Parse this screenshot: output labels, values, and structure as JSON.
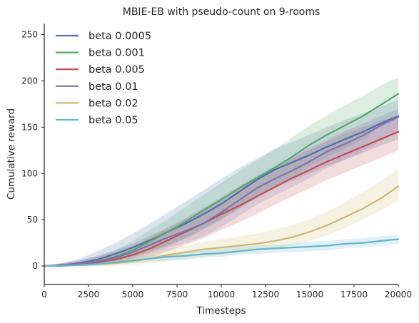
{
  "chart_data": {
    "type": "line",
    "title": "MBIE-EB with pseudo-count on 9-rooms",
    "xlabel": "Timesteps",
    "ylabel": "Cumulative reward",
    "xlim": [
      0,
      20000
    ],
    "ylim": [
      -20,
      262
    ],
    "xticks": [
      0,
      2500,
      5000,
      7500,
      10000,
      12500,
      15000,
      17500,
      20000
    ],
    "yticks": [
      0,
      50,
      100,
      150,
      200,
      250
    ],
    "grid": false,
    "legend_position": "top-left",
    "x": [
      0,
      1000,
      2000,
      3000,
      4000,
      5000,
      6000,
      7000,
      8000,
      9000,
      10000,
      11000,
      12000,
      13000,
      14000,
      15000,
      16000,
      17000,
      18000,
      19000,
      20000
    ],
    "series": [
      {
        "name": "beta 0.0005",
        "color": "#4c72b0",
        "values": [
          0,
          1,
          3,
          7,
          13,
          20,
          28,
          37,
          46,
          56,
          67,
          80,
          93,
          104,
          112,
          120,
          129,
          137,
          145,
          154,
          162
        ],
        "lower": [
          0,
          0,
          1,
          3,
          6,
          10,
          16,
          22,
          30,
          40,
          50,
          62,
          74,
          85,
          92,
          100,
          108,
          115,
          122,
          130,
          137
        ],
        "upper": [
          0,
          3,
          8,
          16,
          25,
          35,
          46,
          58,
          70,
          82,
          94,
          106,
          116,
          126,
          134,
          142,
          150,
          158,
          165,
          172,
          180
        ]
      },
      {
        "name": "beta 0.001",
        "color": "#55a868",
        "values": [
          0,
          1,
          2,
          5,
          10,
          17,
          27,
          37,
          48,
          60,
          72,
          84,
          95,
          106,
          118,
          131,
          142,
          152,
          162,
          174,
          186
        ],
        "lower": [
          0,
          0,
          0,
          2,
          5,
          9,
          15,
          22,
          30,
          40,
          50,
          62,
          73,
          84,
          96,
          108,
          118,
          127,
          137,
          150,
          162
        ],
        "upper": [
          0,
          2,
          5,
          10,
          17,
          27,
          39,
          51,
          64,
          77,
          90,
          102,
          114,
          126,
          139,
          152,
          163,
          174,
          184,
          195,
          204
        ]
      },
      {
        "name": "beta 0.005",
        "color": "#c44e52",
        "values": [
          0,
          1,
          2,
          4,
          7,
          12,
          19,
          28,
          37,
          46,
          56,
          65,
          75,
          85,
          95,
          104,
          113,
          121,
          129,
          137,
          145
        ],
        "lower": [
          0,
          0,
          0,
          1,
          3,
          6,
          10,
          16,
          23,
          30,
          39,
          47,
          56,
          66,
          75,
          84,
          93,
          101,
          109,
          117,
          125
        ],
        "upper": [
          0,
          3,
          6,
          10,
          15,
          22,
          31,
          41,
          51,
          62,
          73,
          84,
          95,
          106,
          116,
          126,
          135,
          143,
          150,
          157,
          163
        ]
      },
      {
        "name": "beta 0.01",
        "color": "#8172b2",
        "values": [
          0,
          1,
          2,
          5,
          9,
          15,
          23,
          31,
          38,
          46,
          58,
          71,
          84,
          94,
          103,
          113,
          124,
          132,
          141,
          152,
          161
        ],
        "lower": [
          0,
          0,
          0,
          2,
          4,
          8,
          13,
          19,
          25,
          32,
          42,
          54,
          66,
          76,
          85,
          95,
          106,
          115,
          124,
          135,
          146
        ],
        "upper": [
          0,
          3,
          6,
          11,
          17,
          24,
          33,
          42,
          52,
          63,
          74,
          86,
          98,
          108,
          118,
          128,
          137,
          146,
          154,
          162,
          170
        ]
      },
      {
        "name": "beta 0.02",
        "color": "#ccb974",
        "values": [
          0,
          0,
          1,
          2,
          3,
          5,
          8,
          12,
          15,
          18,
          20,
          22,
          24,
          27,
          31,
          37,
          44,
          53,
          62,
          73,
          86
        ],
        "lower": [
          0,
          0,
          0,
          0,
          0,
          1,
          3,
          5,
          8,
          10,
          12,
          14,
          16,
          19,
          22,
          27,
          33,
          41,
          50,
          60,
          70
        ],
        "upper": [
          0,
          2,
          4,
          6,
          8,
          11,
          15,
          19,
          22,
          26,
          29,
          32,
          35,
          39,
          44,
          51,
          59,
          69,
          80,
          92,
          105
        ]
      },
      {
        "name": "beta 0.05",
        "color": "#64b5cd",
        "values": [
          0,
          0,
          1,
          2,
          4,
          6,
          8,
          10,
          11,
          13,
          14,
          16,
          18,
          19,
          20,
          21,
          22,
          24,
          25,
          27,
          29
        ],
        "lower": [
          0,
          0,
          0,
          0,
          2,
          3,
          5,
          6,
          7,
          9,
          10,
          12,
          13,
          14,
          15,
          16,
          17,
          19,
          20,
          22,
          24
        ],
        "upper": [
          0,
          1,
          3,
          5,
          7,
          9,
          11,
          13,
          15,
          17,
          19,
          21,
          22,
          23,
          24,
          26,
          27,
          29,
          30,
          32,
          34
        ]
      }
    ]
  }
}
